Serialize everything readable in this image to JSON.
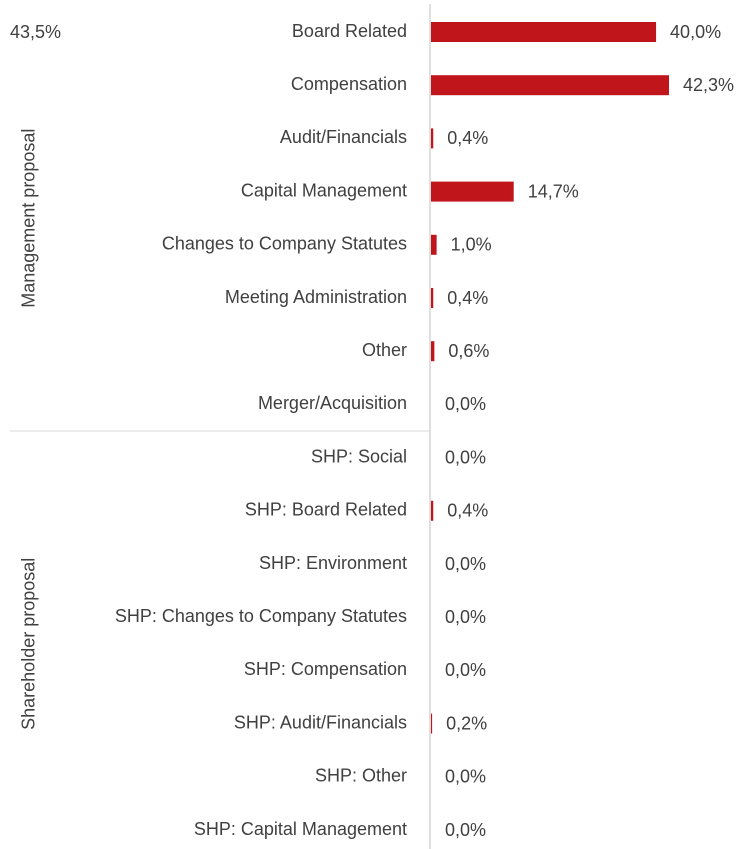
{
  "chart_data": {
    "type": "bar",
    "orientation": "horizontal",
    "color": "#c0161b",
    "annotation": "43,5%",
    "groups": [
      {
        "label": "Management proposal",
        "categories": [
          "Board Related",
          "Compensation",
          "Audit/Financials",
          "Capital Management",
          "Changes to Company Statutes",
          "Meeting Administration",
          "Other",
          "Merger/Acquisition"
        ],
        "values": [
          40.0,
          42.3,
          0.4,
          14.7,
          1.0,
          0.4,
          0.6,
          0.0
        ],
        "value_labels": [
          "40,0%",
          "42,3%",
          "0,4%",
          "14,7%",
          "1,0%",
          "0,4%",
          "0,6%",
          "0,0%"
        ]
      },
      {
        "label": "Shareholder proposal",
        "categories": [
          "SHP: Social",
          "SHP: Board Related",
          "SHP: Environment",
          "SHP: Changes to Company Statutes",
          "SHP: Compensation",
          "SHP: Audit/Financials",
          "SHP: Other",
          "SHP: Capital Management"
        ],
        "values": [
          0.0,
          0.4,
          0.0,
          0.0,
          0.0,
          0.2,
          0.0,
          0.0
        ],
        "value_labels": [
          "0,0%",
          "0,4%",
          "0,0%",
          "0,0%",
          "0,0%",
          "0,2%",
          "0,0%",
          "0,0%"
        ]
      }
    ]
  }
}
